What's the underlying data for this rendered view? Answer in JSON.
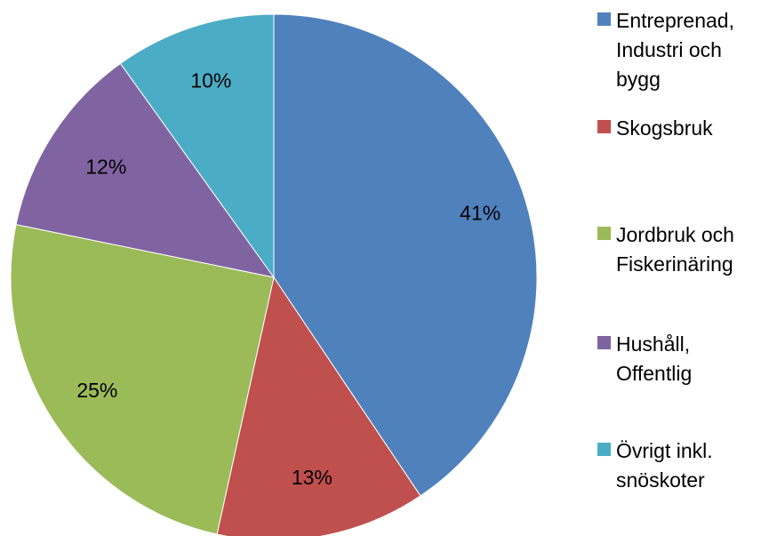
{
  "chart_data": {
    "type": "pie",
    "categories": [
      "Entreprenad, Industri och bygg",
      "Skogsbruk",
      "Jordbruk och Fiskerinäring",
      "Hushåll, Offentlig",
      "Övrigt inkl. snöskoter"
    ],
    "values": [
      41,
      13,
      25,
      12,
      10
    ],
    "labels": [
      "41%",
      "13%",
      "25%",
      "12%",
      "10%"
    ],
    "colors": [
      "#4F81BD",
      "#C0504D",
      "#9BBB59",
      "#8064A2",
      "#4BACC6"
    ],
    "legend_position": "right",
    "start_angle": "12 o'clock",
    "direction": "clockwise"
  },
  "legend": {
    "items": [
      {
        "label": "Entreprenad,\nIndustri och\nbygg",
        "color": "#4F81BD"
      },
      {
        "label": "Skogsbruk",
        "color": "#C0504D"
      },
      {
        "label": "Jordbruk och\nFiskerinäring",
        "color": "#9BBB59"
      },
      {
        "label": "Hushåll,\nOffentlig",
        "color": "#8064A2"
      },
      {
        "label": "Övrigt inkl.\nsnöskoter",
        "color": "#4BACC6"
      }
    ]
  }
}
